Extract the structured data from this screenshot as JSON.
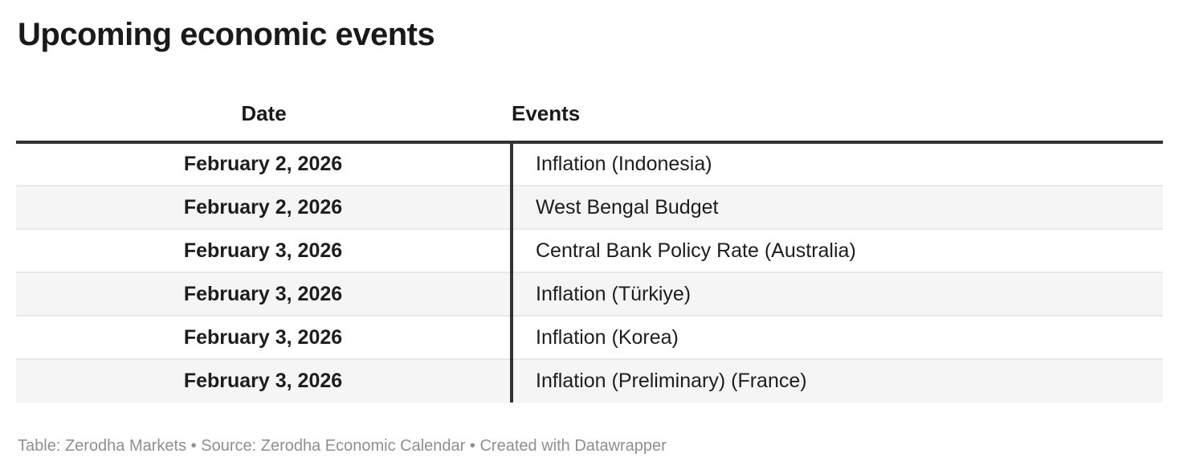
{
  "title": "Upcoming economic events",
  "table": {
    "headers": {
      "date": "Date",
      "events": "Events"
    },
    "rows": [
      {
        "date": "February 2, 2026",
        "event": "Inflation (Indonesia)"
      },
      {
        "date": "February 2, 2026",
        "event": "West Bengal Budget"
      },
      {
        "date": "February 3, 2026",
        "event": "Central Bank Policy Rate (Australia)"
      },
      {
        "date": "February 3, 2026",
        "event": "Inflation (Türkiye)"
      },
      {
        "date": "February 3, 2026",
        "event": "Inflation (Korea)"
      },
      {
        "date": "February 3, 2026",
        "event": "Inflation (Preliminary) (France)"
      }
    ]
  },
  "footer": {
    "table_label": "Table:",
    "table_credit": "Zerodha Markets",
    "separator1": "•",
    "source_label": "Source:",
    "source_name": "Zerodha Economic Calendar",
    "separator2": "•",
    "created_label": "Created with",
    "created_tool": "Datawrapper"
  },
  "colors": {
    "header_border": "#333333",
    "column_divider": "#333333",
    "row_alt_background": "#f5f5f5",
    "row_separator": "#e8e8e8",
    "title_text": "#1a1a1a",
    "body_text": "#1d1d1d",
    "footer_text": "#8f8f8f"
  },
  "chart_data": {
    "type": "table",
    "title": "Upcoming economic events",
    "columns": [
      "Date",
      "Events"
    ],
    "rows": [
      [
        "February 2, 2026",
        "Inflation (Indonesia)"
      ],
      [
        "February 2, 2026",
        "West Bengal Budget"
      ],
      [
        "February 3, 2026",
        "Central Bank Policy Rate (Australia)"
      ],
      [
        "February 3, 2026",
        "Inflation (Türkiye)"
      ],
      [
        "February 3, 2026",
        "Inflation (Korea)"
      ],
      [
        "February 3, 2026",
        "Inflation (Preliminary) (France)"
      ]
    ],
    "layout_hints": {
      "date_column_align": "center",
      "date_column_bold": true,
      "events_column_align": "left",
      "alternating_row_shading": true,
      "thick_rule_below_header": true,
      "vertical_divider_between_columns": true
    }
  }
}
